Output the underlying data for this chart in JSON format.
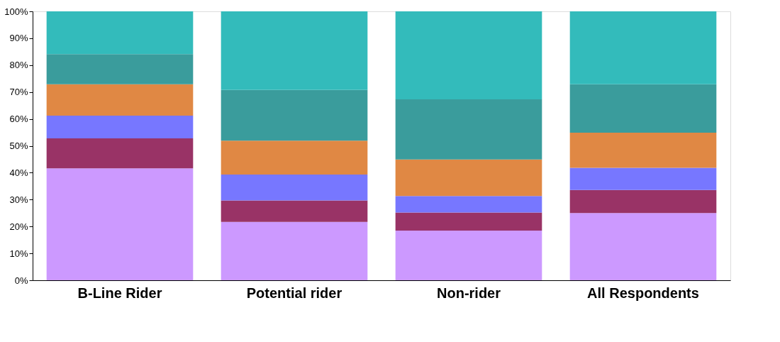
{
  "chart_data": {
    "type": "bar",
    "stacked": true,
    "categories": [
      "B-Line Rider",
      "Potential rider",
      "Non-rider",
      "All Respondents"
    ],
    "series": [
      {
        "color": "#cc99ff",
        "values": [
          41.6,
          21.7,
          18.5,
          25.0
        ]
      },
      {
        "color": "#993366",
        "values": [
          11.2,
          8.0,
          6.7,
          8.6
        ]
      },
      {
        "color": "#7777ff",
        "values": [
          8.4,
          9.6,
          6.1,
          8.2
        ]
      },
      {
        "color": "#e08844",
        "values": [
          11.7,
          12.6,
          13.6,
          13.1
        ]
      },
      {
        "color": "#3a9c9c",
        "values": [
          11.2,
          18.9,
          22.4,
          18.0
        ]
      },
      {
        "color": "#33bbbb",
        "values": [
          15.9,
          29.2,
          32.7,
          27.1
        ]
      }
    ],
    "ylim": [
      0,
      100
    ],
    "yticks": [
      {
        "value": 0,
        "label": "0%"
      },
      {
        "value": 10,
        "label": "10%"
      },
      {
        "value": 20,
        "label": "20%"
      },
      {
        "value": 30,
        "label": "30%"
      },
      {
        "value": 40,
        "label": "40%"
      },
      {
        "value": 50,
        "label": "50%"
      },
      {
        "value": 60,
        "label": "60%"
      },
      {
        "value": 70,
        "label": "70%"
      },
      {
        "value": 80,
        "label": "80%"
      },
      {
        "value": 90,
        "label": "90%"
      },
      {
        "value": 100,
        "label": "100%"
      }
    ],
    "grid": false,
    "legend": false
  }
}
